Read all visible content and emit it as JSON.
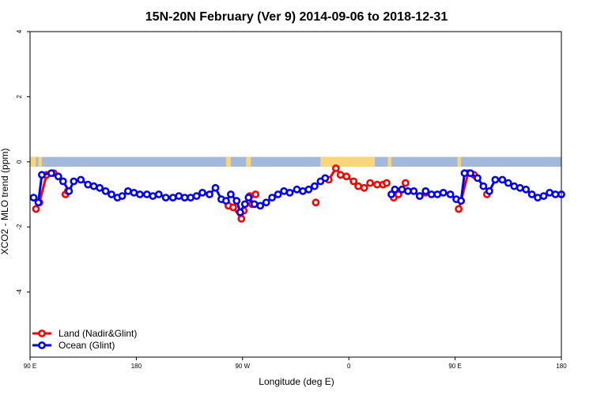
{
  "chart_data": {
    "type": "line",
    "title": "15N-20N February (Ver 9)   2014-09-06 to 2018-12-31",
    "xlabel": "Longitude (deg E)",
    "ylabel": "XCO2 - MLO trend (ppm)",
    "xlim": [
      90,
      540
    ],
    "ylim": [
      -6,
      4
    ],
    "x_ticks": [
      {
        "value": 90,
        "label": "90 E"
      },
      {
        "value": 180,
        "label": "180"
      },
      {
        "value": 270,
        "label": "90 W"
      },
      {
        "value": 360,
        "label": "0"
      },
      {
        "value": 450,
        "label": "90 E"
      },
      {
        "value": 540,
        "label": "180"
      }
    ],
    "y_ticks": [
      {
        "value": 4,
        "label": "4"
      },
      {
        "value": 2,
        "label": "2"
      },
      {
        "value": 0,
        "label": "0"
      },
      {
        "value": -2,
        "label": "-2"
      },
      {
        "value": -4,
        "label": "-4"
      }
    ],
    "grid": false,
    "legend_position": "bottom-left",
    "map_strip": {
      "ocean_color": "#a3b9dc",
      "land_color": "#f9d67a",
      "y_range": [
        -0.15,
        0.15
      ],
      "land_spans": [
        [
          90,
          95
        ],
        [
          97,
          100
        ],
        [
          256,
          260
        ],
        [
          273,
          277
        ],
        [
          336,
          355
        ],
        [
          355,
          382
        ],
        [
          393,
          396
        ],
        [
          452,
          455
        ]
      ]
    },
    "series": [
      {
        "name": "Land (Nadir&Glint)",
        "color": "#ff0000",
        "segments": [
          [
            [
              95,
              -1.45
            ],
            [
              98,
              -1.25
            ],
            [
              104,
              -0.4
            ],
            [
              110,
              -0.35
            ]
          ],
          [
            [
              120,
              -1.0
            ],
            [
              122,
              -0.9
            ]
          ],
          [
            [
              258,
              -1.35
            ],
            [
              262,
              -1.4
            ],
            [
              269,
              -1.75
            ],
            [
              271,
              -1.5
            ]
          ],
          [
            [
              276,
              -1.05
            ],
            [
              278,
              -1.3
            ]
          ],
          [
            [
              281,
              -1.0
            ]
          ],
          [
            [
              332,
              -1.25
            ]
          ],
          [
            [
              343,
              -0.55
            ],
            [
              349,
              -0.2
            ],
            [
              353,
              -0.4
            ],
            [
              358,
              -0.45
            ],
            [
              364,
              -0.6
            ],
            [
              368,
              -0.75
            ],
            [
              373,
              -0.8
            ],
            [
              378,
              -0.65
            ],
            [
              384,
              -0.7
            ],
            [
              389,
              -0.7
            ],
            [
              392,
              -0.65
            ]
          ],
          [
            [
              398,
              -1.1
            ],
            [
              402,
              -1.0
            ]
          ],
          [
            [
              408,
              -0.65
            ]
          ],
          [
            [
              420,
              -1.05
            ],
            [
              425,
              -0.95
            ]
          ],
          [
            [
              453,
              -1.45
            ],
            [
              455,
              -1.2
            ],
            [
              461,
              -0.35
            ],
            [
              466,
              -0.4
            ]
          ],
          [
            [
              477,
              -1.0
            ]
          ]
        ]
      },
      {
        "name": "Ocean (Glint)",
        "color": "#0000ff",
        "segments": [
          [
            [
              93,
              -1.1
            ],
            [
              97,
              -1.25
            ],
            [
              100,
              -0.4
            ],
            [
              108,
              -0.35
            ],
            [
              114,
              -0.45
            ],
            [
              118,
              -0.6
            ],
            [
              123,
              -0.9
            ],
            [
              127,
              -0.6
            ],
            [
              133,
              -0.55
            ],
            [
              139,
              -0.7
            ],
            [
              144,
              -0.75
            ],
            [
              149,
              -0.8
            ],
            [
              154,
              -0.9
            ],
            [
              159,
              -1.0
            ],
            [
              164,
              -1.1
            ],
            [
              168,
              -1.05
            ],
            [
              173,
              -0.9
            ],
            [
              178,
              -0.95
            ],
            [
              183,
              -1.0
            ],
            [
              189,
              -1.0
            ],
            [
              194,
              -1.05
            ],
            [
              199,
              -1.0
            ],
            [
              205,
              -1.1
            ],
            [
              211,
              -1.1
            ],
            [
              216,
              -1.05
            ],
            [
              221,
              -1.1
            ],
            [
              226,
              -1.1
            ],
            [
              231,
              -1.05
            ],
            [
              236,
              -0.95
            ],
            [
              242,
              -1.0
            ],
            [
              247,
              -0.8
            ],
            [
              252,
              -1.15
            ],
            [
              256,
              -1.2
            ],
            [
              260,
              -1.0
            ],
            [
              265,
              -1.2
            ],
            [
              268,
              -1.55
            ],
            [
              272,
              -1.3
            ],
            [
              275,
              -1.1
            ],
            [
              280,
              -1.3
            ],
            [
              285,
              -1.35
            ],
            [
              290,
              -1.25
            ],
            [
              295,
              -1.1
            ],
            [
              300,
              -1.0
            ],
            [
              305,
              -0.9
            ],
            [
              310,
              -0.95
            ],
            [
              316,
              -0.85
            ],
            [
              321,
              -0.9
            ],
            [
              326,
              -0.85
            ],
            [
              331,
              -0.75
            ],
            [
              336,
              -0.6
            ],
            [
              340,
              -0.5
            ]
          ],
          [
            [
              396,
              -1.0
            ],
            [
              399,
              -0.85
            ]
          ],
          [
            [
              405,
              -0.85
            ],
            [
              410,
              -0.9
            ],
            [
              415,
              -0.9
            ],
            [
              420,
              -1.05
            ],
            [
              425,
              -0.9
            ],
            [
              430,
              -1.0
            ],
            [
              435,
              -1.0
            ],
            [
              440,
              -0.95
            ],
            [
              446,
              -1.0
            ],
            [
              451,
              -1.15
            ],
            [
              455,
              -1.2
            ],
            [
              458,
              -0.35
            ],
            [
              463,
              -0.35
            ],
            [
              469,
              -0.5
            ],
            [
              474,
              -0.75
            ],
            [
              479,
              -0.9
            ],
            [
              484,
              -0.55
            ],
            [
              490,
              -0.55
            ],
            [
              495,
              -0.65
            ],
            [
              500,
              -0.75
            ],
            [
              505,
              -0.8
            ],
            [
              510,
              -0.85
            ],
            [
              515,
              -1.0
            ],
            [
              520,
              -1.1
            ],
            [
              525,
              -1.05
            ],
            [
              530,
              -0.95
            ],
            [
              535,
              -1.0
            ],
            [
              540,
              -1.0
            ]
          ]
        ]
      }
    ]
  }
}
